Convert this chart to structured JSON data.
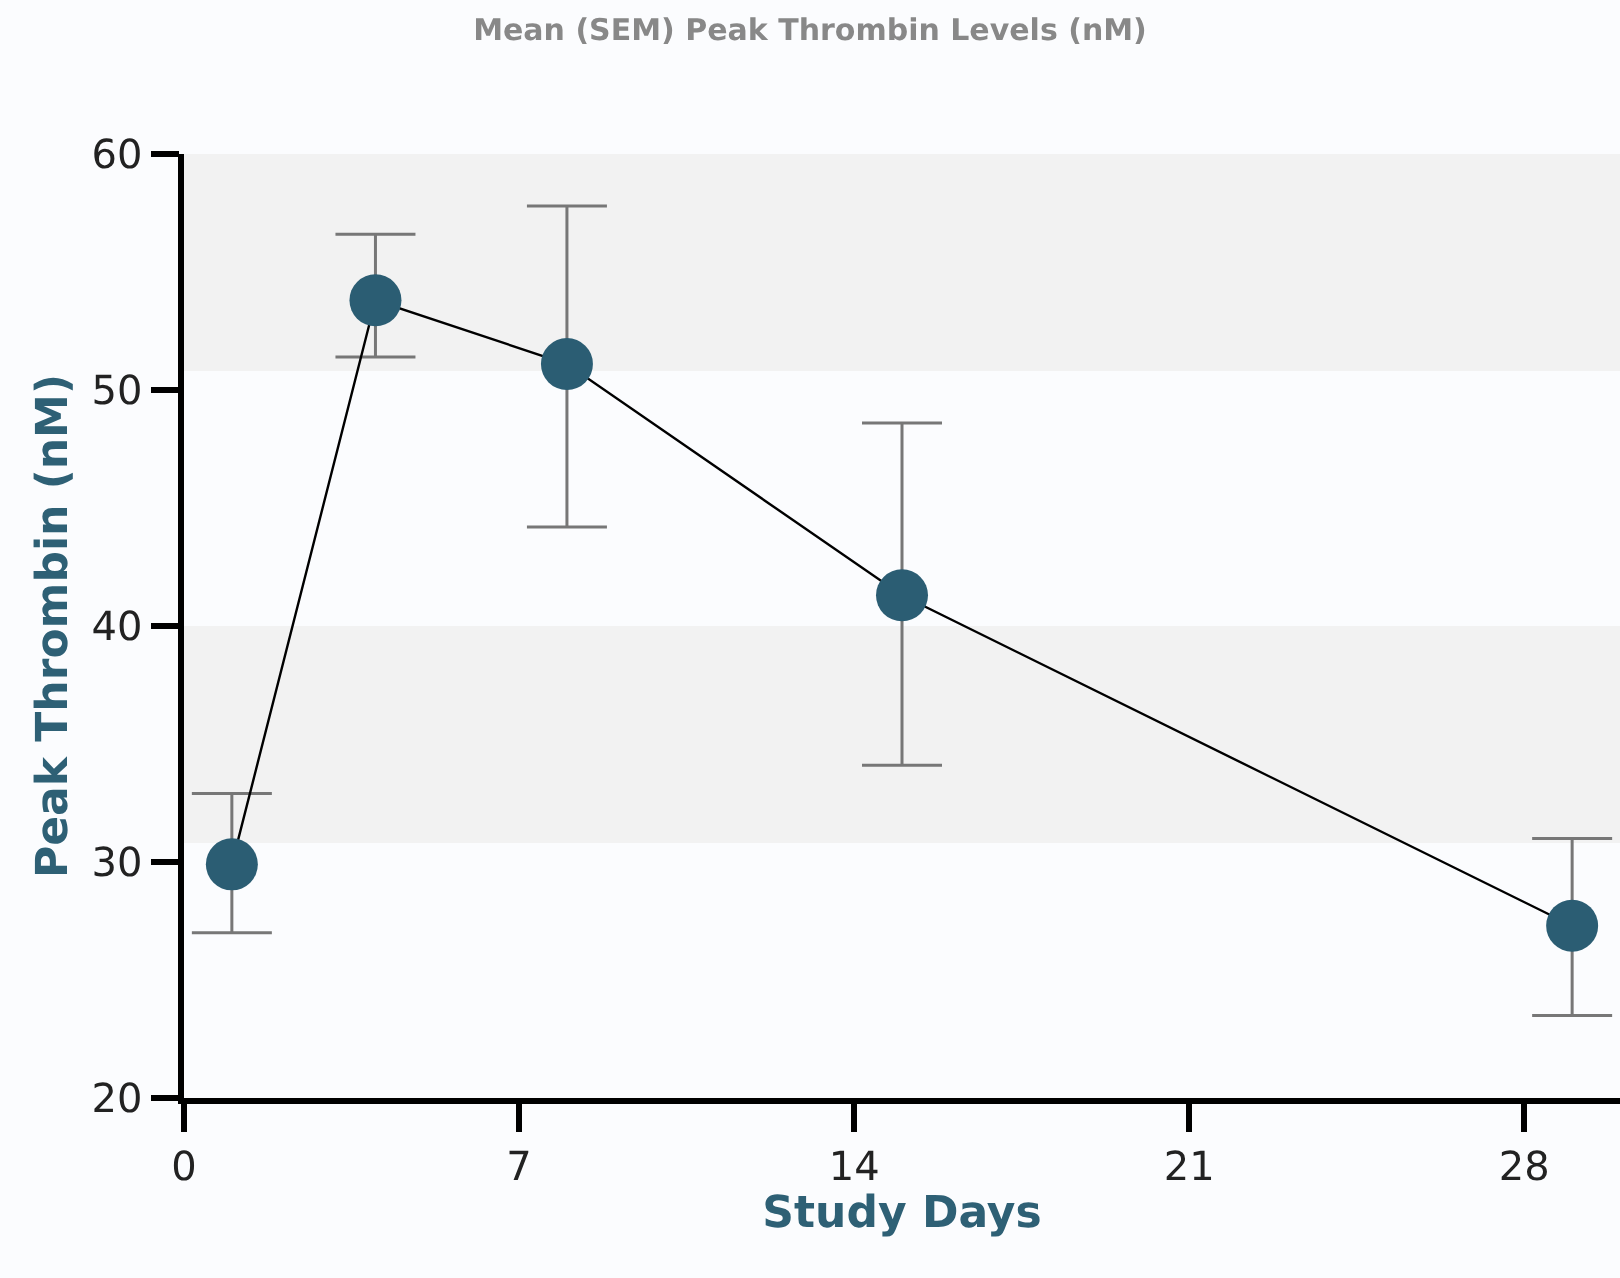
{
  "chart_data": {
    "type": "line",
    "title": "Mean (SEM) Peak Thrombin Levels (nM)",
    "xlabel": "Study Days",
    "ylabel": "Peak Thrombin (nM)",
    "x": [
      1,
      4,
      8,
      15,
      29
    ],
    "series": [
      {
        "color": "#2b5d73",
        "values": [
          29.9,
          53.8,
          51.1,
          41.3,
          27.3
        ],
        "errors": [
          [
            27.0,
            32.9
          ],
          [
            51.4,
            56.6
          ],
          [
            44.2,
            57.8
          ],
          [
            34.1,
            48.6
          ],
          [
            23.5,
            31.0
          ]
        ]
      }
    ],
    "xlim": [
      0,
      30
    ],
    "xticks": [
      0,
      7,
      14,
      21,
      28
    ],
    "ylim": [
      20,
      60
    ],
    "yticks": [
      20,
      30,
      40,
      50,
      60
    ],
    "bands": [
      {
        "axis": "y",
        "from": 50.8,
        "to": 60,
        "color": "#f2f2f2"
      },
      {
        "axis": "y",
        "from": 30.8,
        "to": 40,
        "color": "#f2f2f2"
      }
    ],
    "marker": "circle",
    "line_style": "solid",
    "grid": false
  }
}
